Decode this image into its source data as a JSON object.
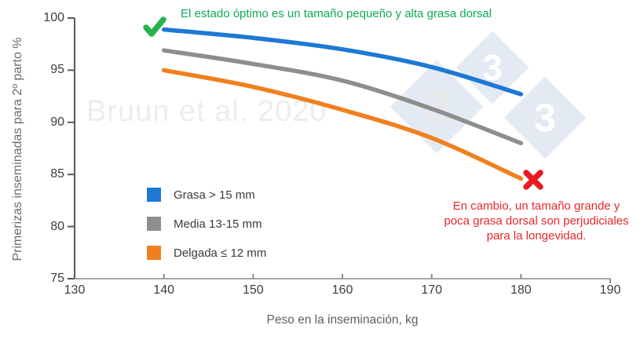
{
  "chart_data": {
    "type": "line",
    "title": "",
    "xlabel": "Peso en la inseminación, kg",
    "ylabel": "Primerizas inseminadas para 2º parto %",
    "x": [
      140,
      150,
      160,
      170,
      180
    ],
    "series": [
      {
        "name": "Grasa > 15 mm",
        "color": "#1d79d4",
        "values": [
          98.9,
          98.1,
          97.0,
          95.3,
          92.7
        ]
      },
      {
        "name": "Media 13-15 mm",
        "color": "#8e8e8e",
        "values": [
          96.9,
          95.6,
          94.0,
          91.3,
          88.0
        ]
      },
      {
        "name": "Delgada ≤ 12 mm",
        "color": "#f0801f",
        "values": [
          95.0,
          93.4,
          91.2,
          88.5,
          84.6
        ]
      }
    ],
    "xlim": [
      130,
      190
    ],
    "ylim": [
      75,
      100
    ],
    "xticks": [
      130,
      140,
      150,
      160,
      170,
      180,
      190
    ],
    "yticks": [
      75,
      80,
      85,
      90,
      95,
      100
    ],
    "grid": false,
    "legend_position": "inside-lower-left"
  },
  "annotations": {
    "optimal": {
      "icon": "check-mark",
      "text": "El estado óptimo es un tamaño pequeño y alta grasa dorsal",
      "color": "#0eab55",
      "icon_color": "#27b24c"
    },
    "risk": {
      "icon": "x-mark",
      "text": "En cambio, un tamaño grande y poca grasa dorsal son perjudiciales para la longevidad.",
      "color": "#e8262b",
      "icon_color": "#e81a22"
    }
  },
  "watermarks": {
    "citation": "Bruun et al. 2020",
    "logo_digit": "3"
  },
  "colors": {
    "y_axis": "#5a5a5a",
    "x_axis": "#a8a8a8",
    "x_tick": "#8a8a8a",
    "y_tick": "#5a5a5a",
    "diamond_fill": "#e4eaf4"
  }
}
